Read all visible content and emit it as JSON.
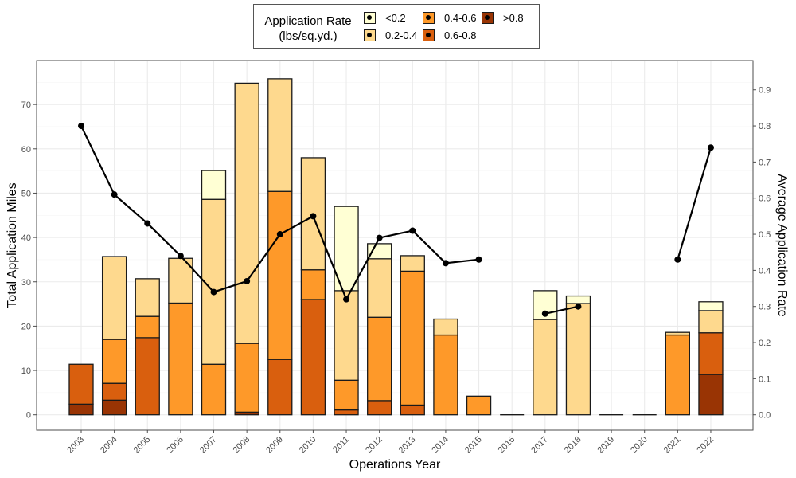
{
  "chart_data": {
    "type": "bar",
    "subtype": "stacked-bar-with-line-secondary-axis",
    "xlabel": "Operations Year",
    "ylabel": "Total Application Miles",
    "y2label": "Average Application Rate",
    "ylim": [
      -3.5,
      80
    ],
    "yticks": [
      0,
      10,
      20,
      30,
      40,
      50,
      60,
      70
    ],
    "y2lim": [
      -0.077,
      0.98
    ],
    "y2ticks": [
      "0.0",
      "0.1",
      "0.2",
      "0.3",
      "0.4",
      "0.5",
      "0.6",
      "0.7",
      "0.8",
      "0.9"
    ],
    "grid": true,
    "legend": {
      "title_line1": "Application Rate",
      "title_line2": "(lbs/sq.yd.)",
      "placement": "top-center"
    },
    "categories": [
      "2003",
      "2004",
      "2005",
      "2006",
      "2007",
      "2008",
      "2009",
      "2010",
      "2011",
      "2012",
      "2013",
      "2014",
      "2015",
      "2016",
      "2017",
      "2018",
      "2019",
      "2020",
      "2021",
      "2022"
    ],
    "series": [
      {
        "name": ">0.8",
        "color": "#993404",
        "values": [
          2.4,
          3.3,
          0,
          0,
          0,
          0.6,
          0,
          0,
          0,
          0,
          0,
          0,
          0,
          0,
          0,
          0,
          0,
          0,
          0,
          9.1
        ]
      },
      {
        "name": "0.6-0.8",
        "color": "#d95f0e",
        "values": [
          9.0,
          3.8,
          17.4,
          0,
          0,
          0,
          12.5,
          26.0,
          1.1,
          3.2,
          2.2,
          0,
          0,
          0,
          0,
          0,
          0,
          0,
          0,
          9.4
        ]
      },
      {
        "name": "0.4-0.6",
        "color": "#fe9929",
        "values": [
          0,
          9.9,
          4.8,
          25.2,
          11.4,
          15.5,
          37.9,
          6.7,
          6.7,
          18.8,
          30.2,
          18.0,
          4.2,
          0,
          0,
          0,
          0,
          0,
          18.0,
          0
        ]
      },
      {
        "name": "0.2-0.4",
        "color": "#fed98e",
        "values": [
          0,
          18.7,
          8.5,
          10.1,
          37.2,
          58.7,
          25.4,
          25.3,
          20.2,
          13.2,
          3.5,
          3.6,
          0,
          0,
          21.5,
          25.1,
          0,
          0,
          0.6,
          5.0
        ]
      },
      {
        "name": "<0.2",
        "color": "#ffffd4",
        "values": [
          0,
          0,
          0,
          0,
          6.5,
          0,
          0,
          0,
          19.0,
          3.4,
          0,
          0,
          0,
          0,
          6.5,
          1.7,
          0,
          0,
          0,
          2.0
        ]
      }
    ],
    "line": {
      "name": "Average Application Rate",
      "axis": "right",
      "values": [
        0.8,
        0.61,
        0.53,
        0.44,
        0.34,
        0.37,
        0.5,
        0.55,
        0.32,
        0.49,
        0.51,
        0.42,
        0.43,
        null,
        0.28,
        0.3,
        null,
        null,
        0.43,
        0.74
      ]
    }
  }
}
